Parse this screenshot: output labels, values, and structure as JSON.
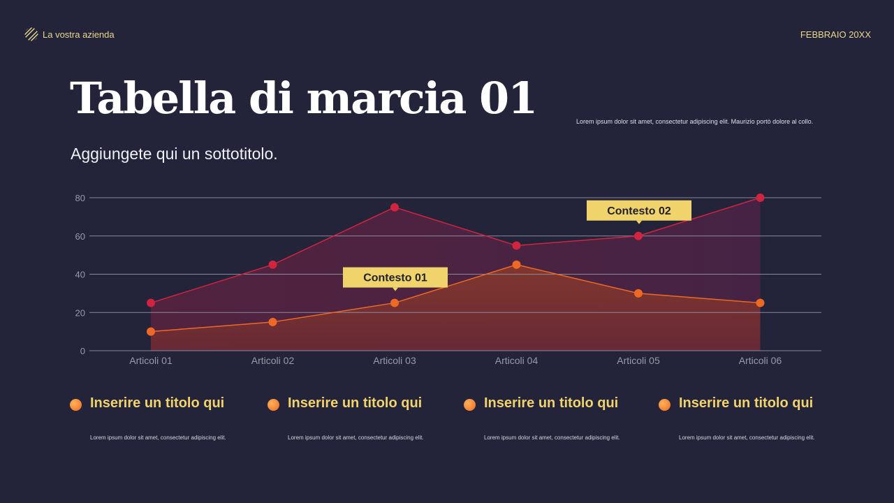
{
  "header": {
    "company": "La vostra azienda",
    "date": "FEBBRAIO 20XX"
  },
  "title": "Tabella di marcia 01",
  "subtitle": "Aggiungete qui un sottotitolo.",
  "description": "Lorem ipsum dolor sit amet, consectetur adipiscing elit. Maurizio portò dolore al collo.",
  "chart_data": {
    "type": "area",
    "categories": [
      "Articoli 01",
      "Articoli 02",
      "Articoli 03",
      "Articoli 04",
      "Articoli 05",
      "Articoli 06"
    ],
    "series": [
      {
        "values": [
          25,
          45,
          75,
          55,
          60,
          80
        ],
        "color": "#d0243f"
      },
      {
        "values": [
          10,
          15,
          25,
          45,
          30,
          25
        ],
        "color": "#ee6a24"
      }
    ],
    "ylim": [
      0,
      80
    ],
    "yticks": [
      "0",
      "20",
      "40",
      "60",
      "80"
    ],
    "grid": true,
    "annotations": [
      {
        "text": "Contesto 01",
        "category": "Articoli 03",
        "series": 1
      },
      {
        "text": "Contesto 02",
        "category": "Articoli 05",
        "series": 0
      }
    ],
    "annotation_color": "#f1d36c"
  },
  "cards": [
    {
      "title": "Inserire un titolo qui",
      "text": "Lorem ipsum dolor sit amet, consectetur adipiscing elit."
    },
    {
      "title": "Inserire un titolo qui",
      "text": "Lorem ipsum dolor sit amet, consectetur adipiscing elit."
    },
    {
      "title": "Inserire un titolo qui",
      "text": "Lorem ipsum dolor sit amet, consectetur adipiscing elit."
    },
    {
      "title": "Inserire un titolo qui",
      "text": "Lorem ipsum dolor sit amet, consectetur adipiscing elit."
    }
  ]
}
